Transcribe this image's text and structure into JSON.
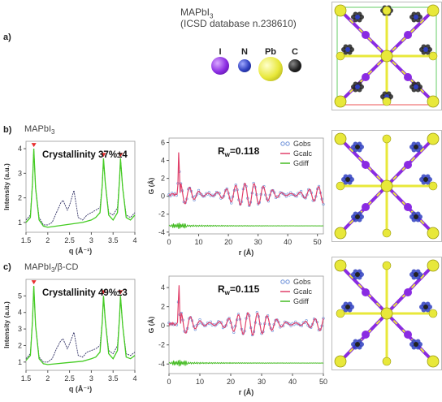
{
  "panel_a": {
    "letter": "a)",
    "compound": "MAPbI",
    "compound_sub": "3",
    "database": "(ICSD database n.238610)",
    "elements": [
      {
        "symbol": "I",
        "color": "#8a2be2"
      },
      {
        "symbol": "N",
        "color": "#2f3fbf"
      },
      {
        "symbol": "Pb",
        "color": "#e8e83a"
      },
      {
        "symbol": "C",
        "color": "#222222"
      }
    ]
  },
  "panel_b": {
    "letter": "b)",
    "label": "MAPbI",
    "label_sub": "3"
  },
  "panel_c": {
    "letter": "c)",
    "label": "MAPbI",
    "label_sub": "3",
    "label_suffix": "/β-CD"
  },
  "chart_data": [
    {
      "id": "xrd-b",
      "type": "line",
      "annotation": "Crystallinity 37%±4",
      "xlabel": "q (Å⁻¹)",
      "ylabel": "Intensity (a.u.)",
      "xlim": [
        1.5,
        4.0
      ],
      "ylim": [
        0.6,
        4.3
      ],
      "xticks": [
        1.5,
        2,
        2.5,
        3,
        3.5,
        4
      ],
      "yticks": [
        1,
        2,
        3,
        4
      ],
      "peaks_marked": [
        1.68,
        3.28,
        3.67
      ],
      "series": [
        {
          "color": "#333366",
          "x": [
            1.5,
            1.6,
            1.65,
            1.68,
            1.72,
            1.8,
            1.9,
            2.0,
            2.1,
            2.2,
            2.3,
            2.35,
            2.45,
            2.5,
            2.6,
            2.7,
            2.8,
            2.9,
            3.0,
            3.1,
            3.2,
            3.25,
            3.28,
            3.32,
            3.4,
            3.5,
            3.6,
            3.65,
            3.67,
            3.72,
            3.8,
            3.9,
            4.0
          ],
          "y": [
            1.1,
            1.3,
            2.6,
            4.0,
            2.4,
            1.2,
            0.9,
            0.9,
            1.0,
            1.4,
            1.8,
            1.9,
            1.5,
            1.7,
            2.3,
            1.2,
            1.1,
            1.3,
            1.4,
            1.5,
            1.6,
            2.5,
            3.6,
            2.6,
            1.4,
            1.3,
            1.6,
            2.8,
            3.6,
            2.4,
            1.3,
            1.2,
            1.4
          ]
        },
        {
          "color": "#44cc22",
          "x": [
            1.5,
            1.6,
            1.65,
            1.68,
            1.72,
            1.8,
            1.9,
            2.0,
            2.2,
            2.4,
            2.6,
            2.8,
            3.0,
            3.1,
            3.2,
            3.25,
            3.28,
            3.32,
            3.4,
            3.5,
            3.6,
            3.65,
            3.67,
            3.72,
            3.8,
            3.9,
            4.0
          ],
          "y": [
            1.0,
            1.2,
            2.6,
            4.0,
            2.4,
            1.1,
            0.85,
            0.8,
            0.85,
            0.9,
            0.95,
            1.0,
            1.1,
            1.2,
            1.4,
            2.5,
            3.6,
            2.6,
            1.3,
            1.1,
            1.4,
            2.8,
            3.6,
            2.4,
            1.2,
            1.1,
            1.3
          ]
        }
      ]
    },
    {
      "id": "pdf-b",
      "type": "line",
      "annotation": "R",
      "annotation_sub": "w",
      "annotation_value": "=0.118",
      "xlabel": "r (Å)",
      "ylabel": "G (Å)",
      "xlim": [
        0,
        52
      ],
      "ylim": [
        -4.2,
        6.5
      ],
      "xticks": [
        0,
        10,
        20,
        30,
        40,
        50
      ],
      "yticks": [
        -4,
        -2,
        0,
        2,
        4,
        6
      ],
      "series": [
        {
          "name": "Gobs",
          "color": "#6a8fd8",
          "style": "circles"
        },
        {
          "name": "Gcalc",
          "color": "#e0406a",
          "style": "line"
        },
        {
          "name": "Gdiff",
          "color": "#44bb22",
          "style": "line",
          "offset": -3.3
        }
      ],
      "peak_x": 3.3,
      "peak_y": 5.1,
      "osc_amplitude": 1.6,
      "osc_period": 3.1,
      "baseline": 0.2
    },
    {
      "id": "xrd-c",
      "type": "line",
      "annotation": "Crystallinity 49%±3",
      "xlabel": "q (Å⁻¹)",
      "ylabel": "Intensity (a.u.)",
      "xlim": [
        1.5,
        4.0
      ],
      "ylim": [
        0.5,
        6.0
      ],
      "xticks": [
        1.5,
        2,
        2.5,
        3,
        3.5,
        4
      ],
      "yticks": [
        1,
        2,
        3,
        4,
        5
      ],
      "peaks_marked": [
        1.68,
        3.28,
        3.67
      ],
      "series": [
        {
          "color": "#333366",
          "x": [
            1.5,
            1.6,
            1.65,
            1.68,
            1.72,
            1.8,
            1.9,
            2.0,
            2.1,
            2.2,
            2.3,
            2.35,
            2.45,
            2.5,
            2.6,
            2.7,
            2.8,
            2.9,
            3.0,
            3.1,
            3.2,
            3.25,
            3.28,
            3.32,
            3.4,
            3.5,
            3.6,
            3.65,
            3.67,
            3.72,
            3.8,
            3.9,
            4.0
          ],
          "y": [
            1.2,
            1.5,
            3.5,
            5.6,
            3.2,
            1.3,
            1.0,
            1.0,
            1.2,
            1.8,
            2.3,
            2.4,
            1.8,
            2.1,
            2.8,
            1.4,
            1.3,
            1.6,
            1.7,
            1.8,
            2.0,
            3.4,
            5.0,
            3.5,
            1.7,
            1.5,
            2.0,
            3.8,
            5.0,
            3.2,
            1.5,
            1.4,
            1.6
          ]
        },
        {
          "color": "#44cc22",
          "x": [
            1.5,
            1.6,
            1.65,
            1.68,
            1.72,
            1.8,
            1.9,
            2.0,
            2.2,
            2.4,
            2.6,
            2.8,
            3.0,
            3.1,
            3.2,
            3.25,
            3.28,
            3.32,
            3.4,
            3.5,
            3.6,
            3.65,
            3.67,
            3.72,
            3.8,
            3.9,
            4.0
          ],
          "y": [
            1.1,
            1.4,
            3.5,
            5.6,
            3.2,
            1.2,
            0.9,
            0.85,
            0.9,
            0.95,
            1.0,
            1.05,
            1.2,
            1.3,
            1.6,
            3.4,
            5.0,
            3.5,
            1.5,
            1.2,
            1.7,
            3.8,
            5.0,
            3.2,
            1.3,
            1.2,
            1.4
          ]
        }
      ]
    },
    {
      "id": "pdf-c",
      "type": "line",
      "annotation": "R",
      "annotation_sub": "w",
      "annotation_value": "=0.115",
      "xlabel": "r (Å)",
      "ylabel": "G (Å)",
      "xlim": [
        0,
        50
      ],
      "ylim": [
        -5,
        5.2
      ],
      "xticks": [
        0,
        10,
        20,
        30,
        40,
        50
      ],
      "yticks": [
        -4,
        -2,
        0,
        2,
        4
      ],
      "series": [
        {
          "name": "Gobs",
          "color": "#6a8fd8",
          "style": "circles"
        },
        {
          "name": "Gcalc",
          "color": "#e0406a",
          "style": "line"
        },
        {
          "name": "Gdiff",
          "color": "#44bb22",
          "style": "line",
          "offset": -3.9
        }
      ],
      "peak_x": 3.2,
      "peak_y": 4.4,
      "osc_amplitude": 1.5,
      "osc_period": 3.1,
      "baseline": 0.2
    }
  ]
}
